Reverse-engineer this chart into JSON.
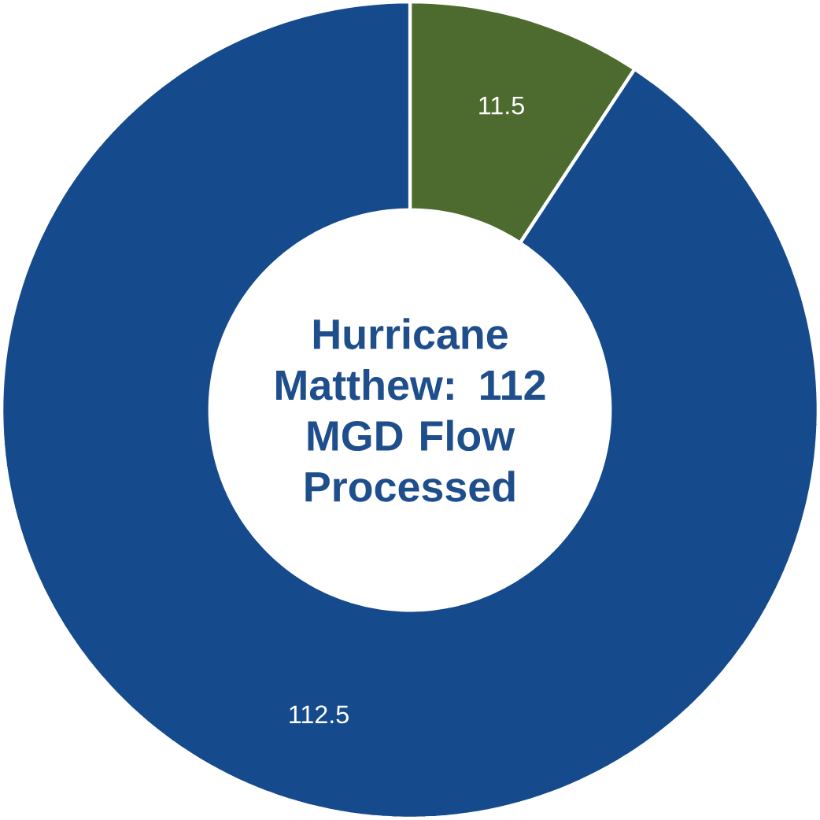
{
  "chart_data": {
    "type": "donut",
    "title": "Hurricane Matthew: 112 MGD Flow Processed",
    "categories": [
      null,
      null
    ],
    "values": [
      11.5,
      112.5
    ],
    "colors": [
      "#4e6b2f",
      "#154a8c"
    ],
    "data_labels": true
  }
}
